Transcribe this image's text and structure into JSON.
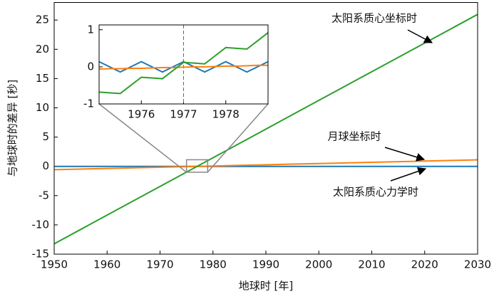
{
  "chart_data": {
    "type": "line",
    "xlabel": "地球时 [年]",
    "ylabel": "与地球时的差异 [秒]",
    "x": [
      1950,
      1955,
      1960,
      1965,
      1970,
      1975,
      1980,
      1985,
      1990,
      1995,
      2000,
      2005,
      2010,
      2015,
      2020,
      2025,
      2030
    ],
    "series": [
      {
        "name": "太阳系质心力学时",
        "color": "#1f77b4",
        "values": [
          0,
          0,
          0,
          0,
          0,
          0,
          0,
          0,
          0,
          0,
          0,
          0,
          0,
          0,
          0,
          0,
          0
        ]
      },
      {
        "name": "月球坐标时",
        "color": "#ff7f0e",
        "values": [
          -0.57,
          -0.46,
          -0.36,
          -0.25,
          -0.15,
          -0.04,
          0.06,
          0.17,
          0.27,
          0.38,
          0.48,
          0.59,
          0.69,
          0.8,
          0.9,
          1.01,
          1.11
        ]
      },
      {
        "name": "太阳系质心坐标时",
        "color": "#2ca02c",
        "values": [
          -13.23,
          -10.78,
          -8.33,
          -5.88,
          -3.43,
          -0.98,
          1.47,
          3.92,
          6.37,
          8.82,
          11.27,
          13.72,
          16.17,
          18.62,
          21.07,
          23.52,
          25.97
        ]
      }
    ],
    "xlim": [
      1950,
      2030
    ],
    "ylim": [
      -15,
      28
    ],
    "xticks": [
      1950,
      1960,
      1970,
      1980,
      1990,
      2000,
      2010,
      2020,
      2030
    ],
    "yticks": [
      -15,
      -10,
      -5,
      0,
      5,
      10,
      15,
      20,
      25
    ],
    "inset": {
      "type": "line",
      "x": [
        1975,
        1975.25,
        1975.5,
        1975.75,
        1976,
        1976.25,
        1976.5,
        1976.75,
        1977,
        1977.25,
        1977.5,
        1977.75,
        1978,
        1978.25,
        1978.5,
        1978.75,
        1979
      ],
      "series": [
        {
          "color": "#1f77b4",
          "values": [
            0.14,
            0,
            -0.14,
            0,
            0.14,
            0,
            -0.14,
            0,
            0.14,
            0,
            -0.14,
            0,
            0.14,
            0,
            -0.14,
            0,
            0.14
          ]
        },
        {
          "color": "#ff7f0e",
          "values": [
            -0.06,
            -0.05,
            -0.05,
            -0.04,
            -0.04,
            -0.03,
            -0.02,
            -0.02,
            -0.01,
            0,
            0,
            0.01,
            0.02,
            0.02,
            0.03,
            0.04,
            0.04
          ]
        },
        {
          "color": "#2ca02c",
          "values": [
            -0.68,
            -0.7,
            -0.72,
            -0.5,
            -0.28,
            -0.3,
            -0.32,
            -0.1,
            0.12,
            0.1,
            0.08,
            0.3,
            0.52,
            0.5,
            0.48,
            0.7,
            0.92
          ]
        }
      ],
      "xlim": [
        1975,
        1979
      ],
      "ylim": [
        -1,
        1.13
      ],
      "xticks": [
        1976,
        1977,
        1978
      ],
      "yticks": [
        -1,
        0,
        1
      ],
      "vline": 1977
    }
  }
}
